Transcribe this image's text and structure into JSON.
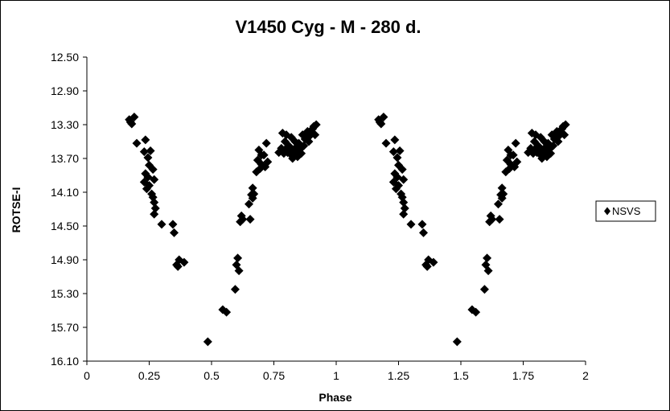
{
  "chart_data": {
    "type": "scatter",
    "title": "V1450 Cyg - M - 280 d.",
    "xlabel": "Phase",
    "ylabel": "ROTSE-I",
    "xlim": [
      0,
      2
    ],
    "ylim": [
      12.5,
      16.1
    ],
    "y_reversed": true,
    "x_ticks": [
      0,
      0.25,
      0.5,
      0.75,
      1,
      1.25,
      1.5,
      1.75,
      2
    ],
    "x_tick_labels": [
      "0",
      "0.25",
      "0.5",
      "0.75",
      "1",
      "1.25",
      "1.5",
      "1.75",
      "2"
    ],
    "y_ticks": [
      12.5,
      12.9,
      13.3,
      13.7,
      14.1,
      14.5,
      14.9,
      15.3,
      15.7,
      16.1
    ],
    "y_tick_labels": [
      "12.50",
      "12.90",
      "13.30",
      "13.70",
      "14.10",
      "14.50",
      "14.90",
      "15.30",
      "15.70",
      "16.10"
    ],
    "grid": false,
    "legend_position": "right",
    "marker": "diamond",
    "marker_color": "#000000",
    "series": [
      {
        "name": "NSVS",
        "points": [
          [
            0.17,
            13.24
          ],
          [
            0.18,
            13.29
          ],
          [
            0.175,
            13.27
          ],
          [
            0.19,
            13.21
          ],
          [
            0.2,
            13.52
          ],
          [
            0.23,
            13.62
          ],
          [
            0.235,
            13.48
          ],
          [
            0.245,
            13.69
          ],
          [
            0.255,
            13.61
          ],
          [
            0.25,
            13.78
          ],
          [
            0.235,
            13.88
          ],
          [
            0.245,
            13.92
          ],
          [
            0.265,
            13.83
          ],
          [
            0.27,
            13.95
          ],
          [
            0.23,
            13.98
          ],
          [
            0.25,
            14.02
          ],
          [
            0.24,
            14.06
          ],
          [
            0.26,
            14.12
          ],
          [
            0.265,
            14.16
          ],
          [
            0.27,
            14.22
          ],
          [
            0.275,
            14.29
          ],
          [
            0.27,
            14.36
          ],
          [
            0.3,
            14.48
          ],
          [
            0.345,
            14.48
          ],
          [
            0.35,
            14.58
          ],
          [
            0.36,
            14.96
          ],
          [
            0.37,
            14.9
          ],
          [
            0.365,
            14.98
          ],
          [
            0.39,
            14.93
          ],
          [
            0.485,
            15.87
          ],
          [
            0.545,
            15.49
          ],
          [
            0.56,
            15.52
          ],
          [
            0.595,
            15.25
          ],
          [
            0.6,
            14.96
          ],
          [
            0.605,
            14.88
          ],
          [
            0.61,
            15.03
          ],
          [
            0.615,
            14.45
          ],
          [
            0.62,
            14.38
          ],
          [
            0.625,
            14.42
          ],
          [
            0.655,
            14.42
          ],
          [
            0.65,
            14.24
          ],
          [
            0.66,
            14.13
          ],
          [
            0.665,
            14.05
          ],
          [
            0.67,
            14.12
          ],
          [
            0.665,
            14.17
          ],
          [
            0.68,
            13.86
          ],
          [
            0.685,
            13.72
          ],
          [
            0.69,
            13.6
          ],
          [
            0.7,
            13.77
          ],
          [
            0.695,
            13.82
          ],
          [
            0.7,
            13.66
          ],
          [
            0.71,
            13.66
          ],
          [
            0.72,
            13.52
          ],
          [
            0.725,
            13.74
          ],
          [
            0.715,
            13.8
          ],
          [
            0.77,
            13.63
          ],
          [
            0.78,
            13.58
          ],
          [
            0.79,
            13.64
          ],
          [
            0.8,
            13.58
          ],
          [
            0.795,
            13.5
          ],
          [
            0.785,
            13.4
          ],
          [
            0.8,
            13.42
          ],
          [
            0.805,
            13.63
          ],
          [
            0.81,
            13.55
          ],
          [
            0.82,
            13.45
          ],
          [
            0.825,
            13.6
          ],
          [
            0.83,
            13.66
          ],
          [
            0.835,
            13.5
          ],
          [
            0.84,
            13.57
          ],
          [
            0.845,
            13.68
          ],
          [
            0.85,
            13.52
          ],
          [
            0.855,
            13.59
          ],
          [
            0.86,
            13.64
          ],
          [
            0.865,
            13.42
          ],
          [
            0.87,
            13.55
          ],
          [
            0.875,
            13.47
          ],
          [
            0.88,
            13.43
          ],
          [
            0.885,
            13.38
          ],
          [
            0.89,
            13.5
          ],
          [
            0.895,
            13.43
          ],
          [
            0.9,
            13.39
          ],
          [
            0.905,
            13.35
          ],
          [
            0.91,
            13.32
          ],
          [
            0.915,
            13.42
          ],
          [
            0.92,
            13.3
          ],
          [
            0.82,
            13.66
          ],
          [
            0.815,
            13.62
          ],
          [
            0.825,
            13.7
          ],
          [
            0.835,
            13.58
          ],
          [
            0.84,
            13.62
          ],
          [
            0.85,
            13.61
          ],
          [
            0.805,
            13.57
          ],
          [
            1.17,
            13.24
          ],
          [
            1.18,
            13.29
          ],
          [
            1.175,
            13.27
          ],
          [
            1.19,
            13.21
          ],
          [
            1.2,
            13.52
          ],
          [
            1.23,
            13.62
          ],
          [
            1.235,
            13.48
          ],
          [
            1.245,
            13.69
          ],
          [
            1.255,
            13.61
          ],
          [
            1.25,
            13.78
          ],
          [
            1.235,
            13.88
          ],
          [
            1.245,
            13.92
          ],
          [
            1.265,
            13.83
          ],
          [
            1.27,
            13.95
          ],
          [
            1.23,
            13.98
          ],
          [
            1.25,
            14.02
          ],
          [
            1.24,
            14.06
          ],
          [
            1.26,
            14.12
          ],
          [
            1.265,
            14.16
          ],
          [
            1.27,
            14.22
          ],
          [
            1.275,
            14.29
          ],
          [
            1.27,
            14.36
          ],
          [
            1.3,
            14.48
          ],
          [
            1.345,
            14.48
          ],
          [
            1.35,
            14.58
          ],
          [
            1.36,
            14.96
          ],
          [
            1.37,
            14.9
          ],
          [
            1.365,
            14.98
          ],
          [
            1.39,
            14.93
          ],
          [
            1.485,
            15.87
          ],
          [
            1.545,
            15.49
          ],
          [
            1.56,
            15.52
          ],
          [
            1.595,
            15.25
          ],
          [
            1.6,
            14.96
          ],
          [
            1.605,
            14.88
          ],
          [
            1.61,
            15.03
          ],
          [
            1.615,
            14.45
          ],
          [
            1.62,
            14.38
          ],
          [
            1.625,
            14.42
          ],
          [
            1.655,
            14.42
          ],
          [
            1.65,
            14.24
          ],
          [
            1.66,
            14.13
          ],
          [
            1.665,
            14.05
          ],
          [
            1.67,
            14.12
          ],
          [
            1.665,
            14.17
          ],
          [
            1.68,
            13.86
          ],
          [
            1.685,
            13.72
          ],
          [
            1.69,
            13.6
          ],
          [
            1.7,
            13.77
          ],
          [
            1.695,
            13.82
          ],
          [
            1.7,
            13.66
          ],
          [
            1.71,
            13.66
          ],
          [
            1.72,
            13.52
          ],
          [
            1.725,
            13.74
          ],
          [
            1.715,
            13.8
          ],
          [
            1.77,
            13.63
          ],
          [
            1.78,
            13.58
          ],
          [
            1.79,
            13.64
          ],
          [
            1.8,
            13.58
          ],
          [
            1.795,
            13.5
          ],
          [
            1.785,
            13.4
          ],
          [
            1.8,
            13.42
          ],
          [
            1.805,
            13.63
          ],
          [
            1.81,
            13.55
          ],
          [
            1.82,
            13.45
          ],
          [
            1.825,
            13.6
          ],
          [
            1.83,
            13.66
          ],
          [
            1.835,
            13.5
          ],
          [
            1.84,
            13.57
          ],
          [
            1.845,
            13.68
          ],
          [
            1.85,
            13.52
          ],
          [
            1.855,
            13.59
          ],
          [
            1.86,
            13.64
          ],
          [
            1.865,
            13.42
          ],
          [
            1.87,
            13.55
          ],
          [
            1.875,
            13.47
          ],
          [
            1.88,
            13.43
          ],
          [
            1.885,
            13.38
          ],
          [
            1.89,
            13.5
          ],
          [
            1.895,
            13.43
          ],
          [
            1.9,
            13.39
          ],
          [
            1.905,
            13.35
          ],
          [
            1.91,
            13.32
          ],
          [
            1.915,
            13.42
          ],
          [
            1.92,
            13.3
          ],
          [
            1.82,
            13.66
          ],
          [
            1.815,
            13.62
          ],
          [
            1.825,
            13.7
          ],
          [
            1.835,
            13.58
          ],
          [
            1.84,
            13.62
          ],
          [
            1.85,
            13.61
          ],
          [
            1.805,
            13.57
          ]
        ]
      }
    ]
  }
}
